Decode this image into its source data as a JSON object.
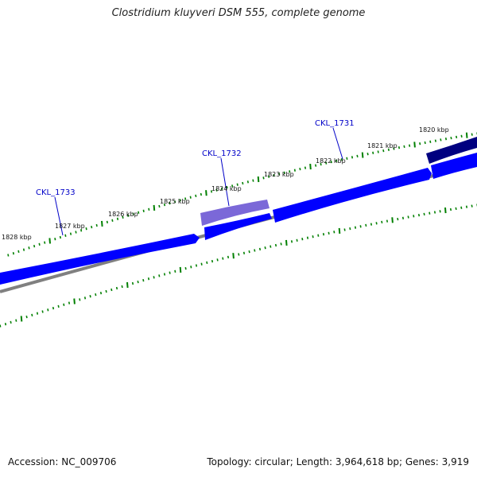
{
  "title": "Clostridium kluyveri DSM 555, complete genome",
  "footer": {
    "accession": "Accession: NC_009706",
    "summary": "Topology: circular; Length: 3,964,618 bp; Genes: 3,919"
  },
  "scale_labels": [
    "1828 kbp",
    "1827 kbp",
    "1826 kbp",
    "1825 kbp",
    "1824 kbp",
    "1823 kbp",
    "1822 kbp",
    "1821 kbp",
    "1820 kbp"
  ],
  "gene_labels": [
    "CKL_1733",
    "CKL_1732",
    "CKL_1731"
  ],
  "colors": {
    "gene_blue": "#0000ff",
    "gene_dark_blue": "#000080",
    "gene_highlight": "#7b68d8",
    "backbone": "#808080",
    "tick_green": "#008000",
    "label_blue": "#0000c8"
  }
}
